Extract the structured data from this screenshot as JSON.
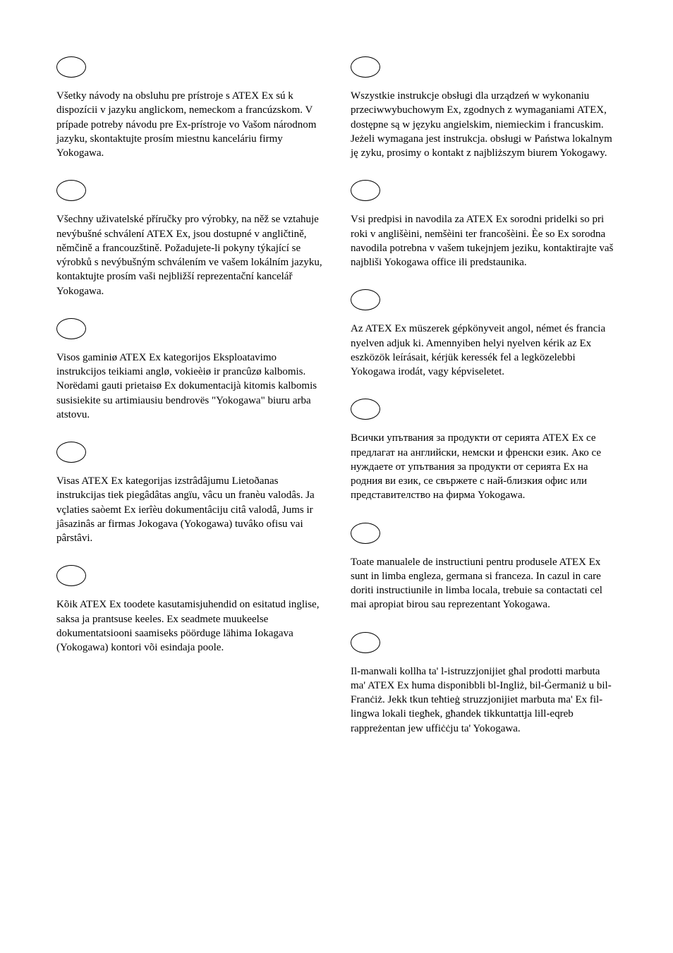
{
  "left": [
    "Všetky návody na obsluhu pre prístroje s ATEX Ex sú k dispozícii v jazyku anglickom, nemeckom a francúzskom. V prípade potreby návodu pre Ex-prístroje vo Vašom národnom jazyku, skontaktujte prosím miestnu kanceláriu firmy Yokogawa.",
    "Všechny uživatelské příručky pro výrobky, na něž se vztahuje nevýbušné schválení ATEX Ex, jsou dostupné v angličtině, němčině a francouzštině. Požadujete-li pokyny týkající se výrobků s nevýbušným schválením ve vašem lokálním jazyku, kontaktujte prosím vaši nejbližší reprezentační kancelář Yokogawa.",
    "Visos gaminiø ATEX Ex kategorijos Eksploatavimo instrukcijos teikiami anglø, vokieèiø ir prancûzø kalbomis. Norëdami gauti prietaisø Ex dokumentacijà kitomis kalbomis susisiekite su artimiausiu bendrovës \"Yokogawa\" biuru arba atstovu.",
    "Visas ATEX Ex  kategorijas izstrâdâjumu Lietoðanas instrukcijas tiek piegâdâtas angïu, vâcu un franèu valodâs. Ja vçlaties saòemt Ex ierîèu dokumentâciju citâ valodâ, Jums ir jâsazinâs ar firmas Jokogava (Yokogawa) tuvâko ofisu vai pârstâvi.",
    "Kõik ATEX Ex toodete kasutamisjuhendid on esitatud inglise, saksa ja prantsuse keeles. Ex seadmete muukeelse dokumentatsiooni saamiseks pöörduge lähima Iokagava (Yokogawa) kontori või esindaja poole."
  ],
  "right": [
    "Wszystkie instrukcje obsługi dla urządzeń w wykonaniu przeciwwybuchowym Ex, zgodnych z wymaganiami ATEX, dostępne są w języku angielskim, niemieckim i francuskim. Jeżeli wymagana jest instrukcja. obsługi w Państwa lokalnym ję zyku, prosimy o kontakt z najbliższym biurem Yokogawy.",
    "Vsi predpisi in navodila za ATEX Ex sorodni pridelki so pri roki v anglišèini, nemšèini ter francošèini. Èe so Ex sorodna navodila potrebna v vašem tukejnjem jeziku, kontaktirajte vaš najbliši Yokogawa office ili predstaunika.",
    "Az ATEX Ex müszerek gépkönyveit angol, német és francia nyelven adjuk ki. Amennyiben helyi nyelven kérik az Ex eszközök leírásait, kérjük keressék fel a legközelebbi Yokogawa irodát, vagy képviseletet.",
    "Всички упътвания за продукти от серията ATEX Ex се предлагат на английски, немски и френски език. Ако се нуждаете от упътвания за продукти от серията Ex на родния ви език, се свържете с най-близкия офис или представителство на фирма Yokogawa.",
    "Toate manualele de instructiuni pentru produsele ATEX Ex sunt in limba engleza, germana si franceza. In cazul in care doriti instructiunile in limba locala, trebuie sa contactati cel mai apropiat birou sau reprezentant Yokogawa.",
    "Il-manwali kollha ta' l-istruzzjonijiet għal prodotti marbuta ma' ATEX Ex huma disponibbli bl-Ingliż, bil-Ġermaniż u bil-Franċiż. Jekk tkun teħtieġ struzzjonijiet marbuta ma' Ex fil-lingwa lokali tiegħek, għandek tikkuntattja lill-eqreb rappreżentan jew uffiċċju ta' Yokogawa."
  ]
}
